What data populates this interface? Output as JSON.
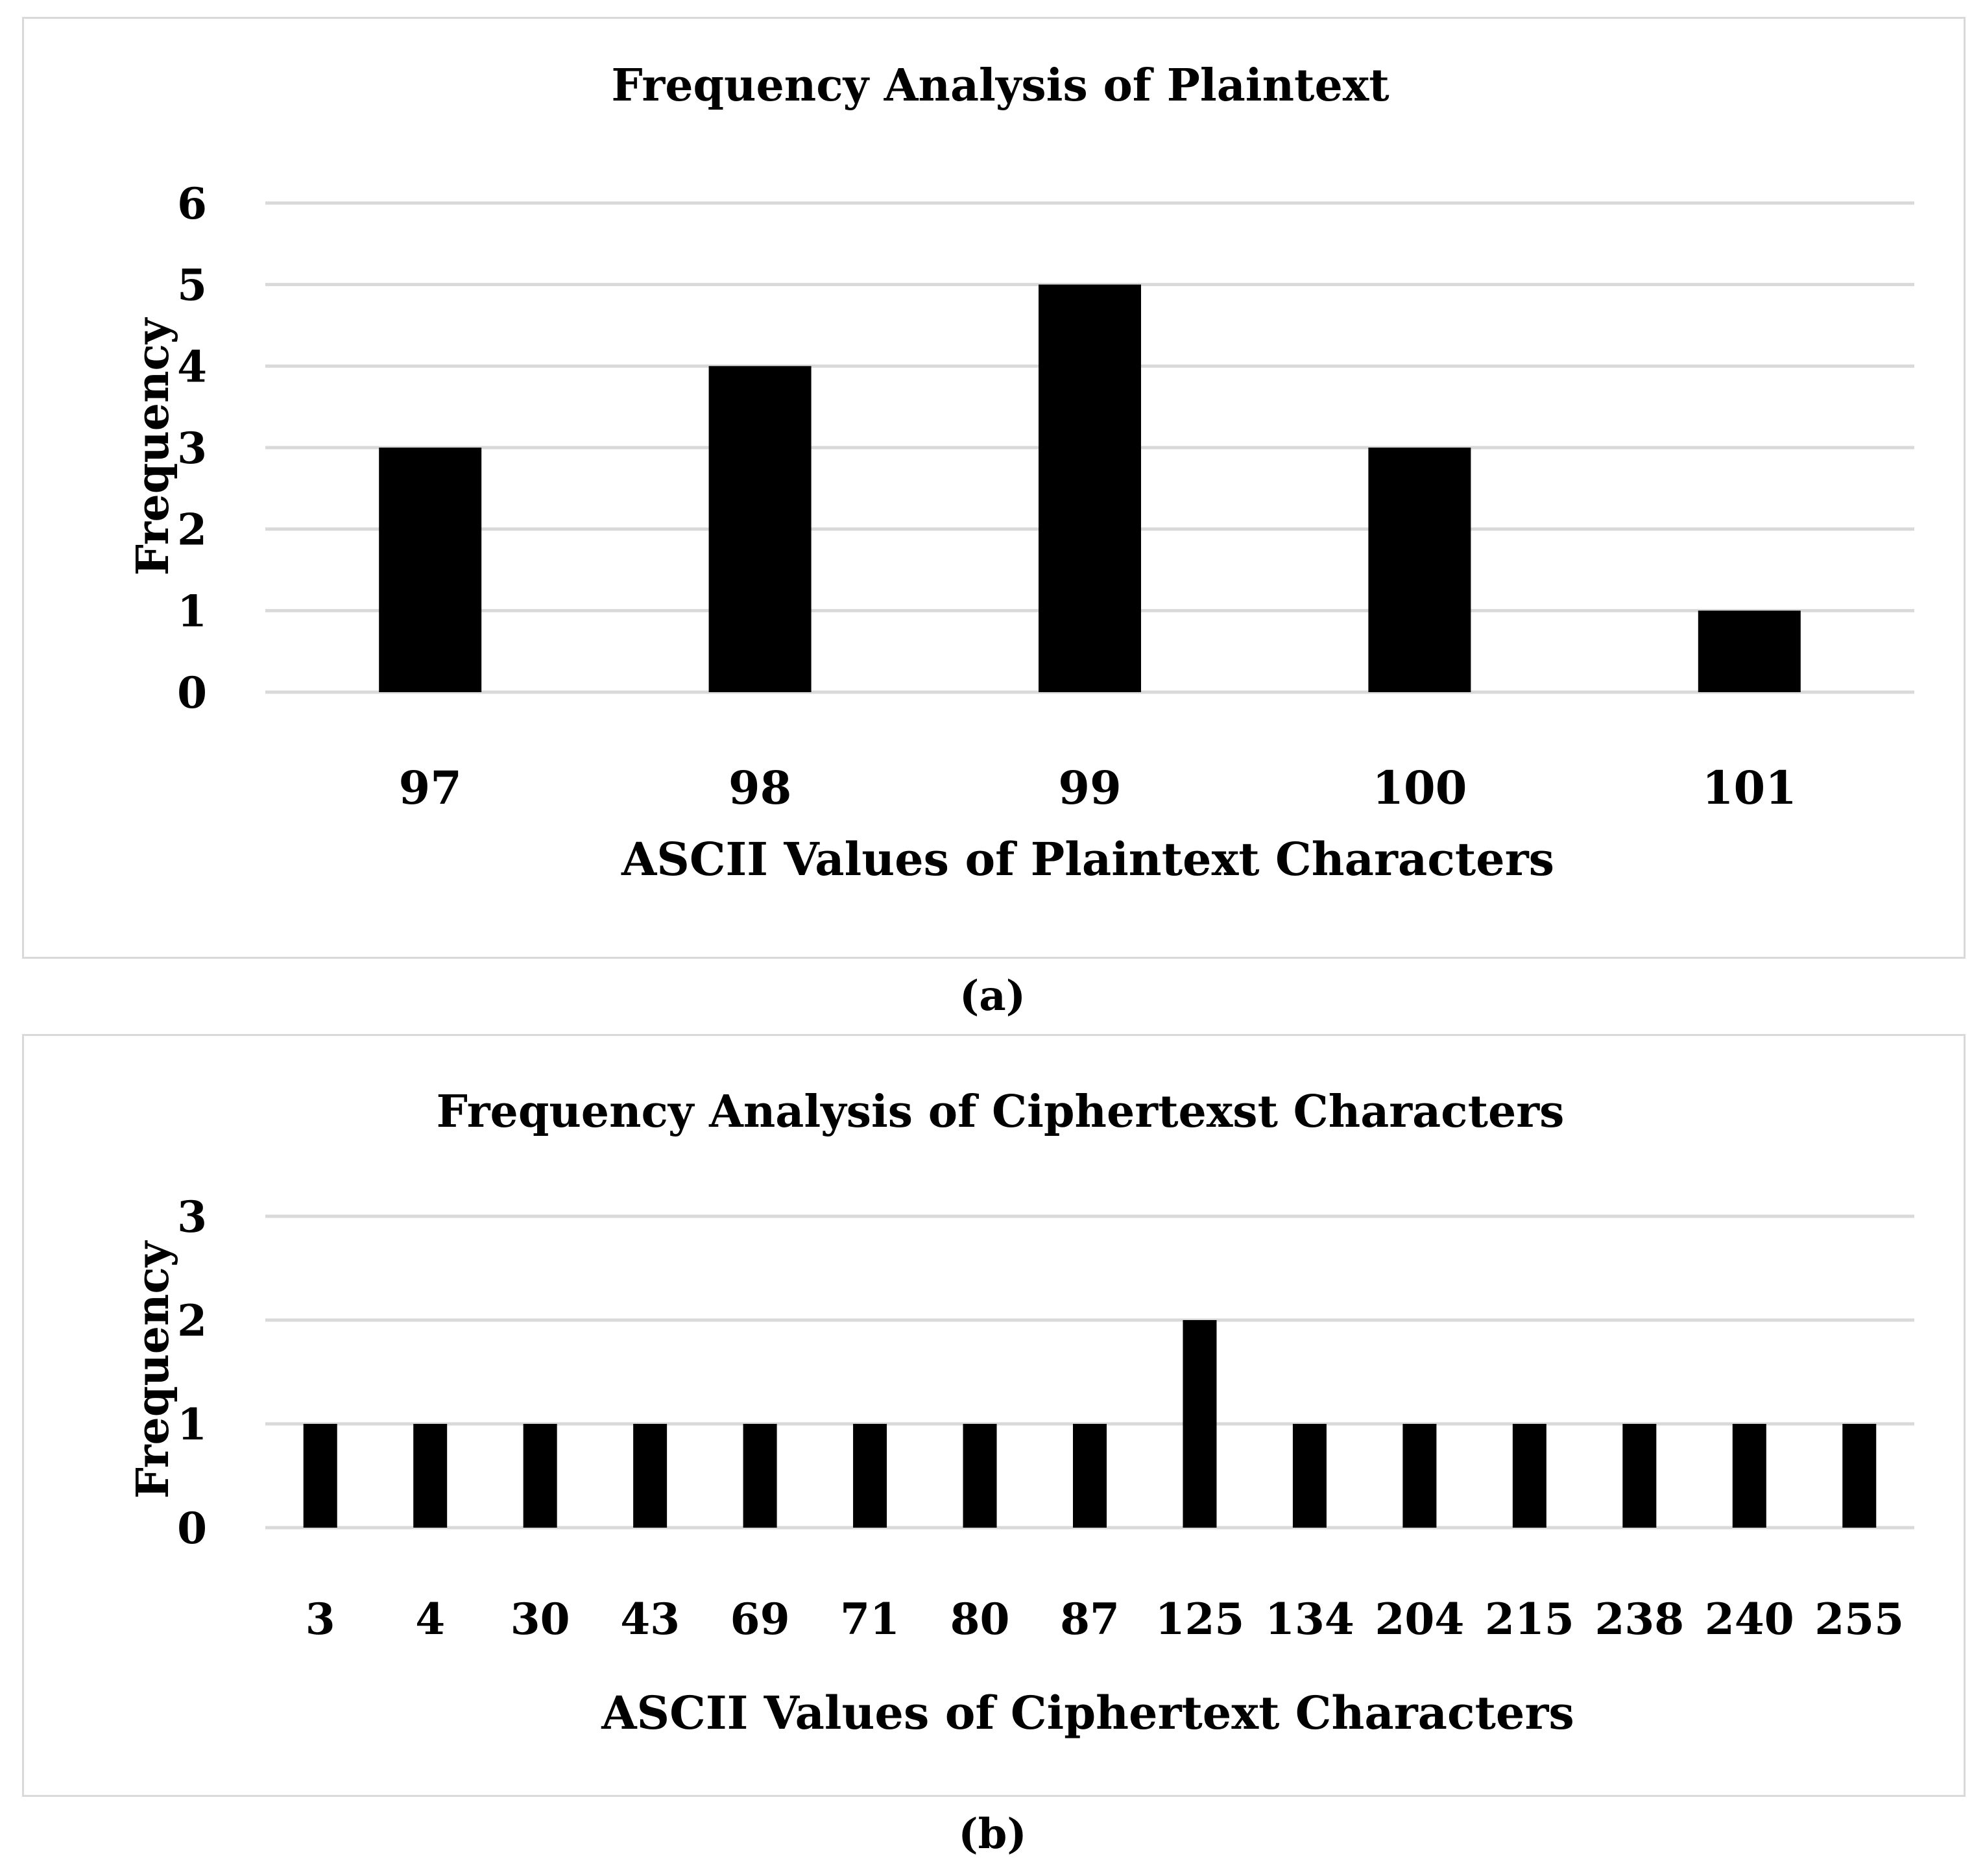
{
  "chart_data": [
    {
      "type": "bar",
      "title": "Frequency Analysis of Plaintext",
      "xlabel": "ASCII Values of Plaintext Characters",
      "ylabel": "Frequency",
      "categories": [
        "97",
        "98",
        "99",
        "100",
        "101"
      ],
      "values": [
        3,
        4,
        5,
        3,
        1
      ],
      "yticks": [
        "0",
        "1",
        "2",
        "3",
        "4",
        "5",
        "6"
      ],
      "ylim": [
        0,
        6
      ],
      "grid": true,
      "legend": "none",
      "bar_color": "#000000",
      "grid_color": "#d9d9d9",
      "caption": "(a)"
    },
    {
      "type": "bar",
      "title": "Frequency Analysis of Ciphertexst Characters",
      "xlabel": "ASCII Values of Ciphertext Characters",
      "ylabel": "Frequency",
      "categories": [
        "3",
        "4",
        "30",
        "43",
        "69",
        "71",
        "80",
        "87",
        "125",
        "134",
        "204",
        "215",
        "238",
        "240",
        "255"
      ],
      "values": [
        1,
        1,
        1,
        1,
        1,
        1,
        1,
        1,
        2,
        1,
        1,
        1,
        1,
        1,
        1
      ],
      "yticks": [
        "0",
        "1",
        "2",
        "3"
      ],
      "ylim": [
        0,
        3
      ],
      "grid": true,
      "legend": "none",
      "bar_color": "#000000",
      "grid_color": "#d9d9d9",
      "caption": "(b)"
    }
  ]
}
